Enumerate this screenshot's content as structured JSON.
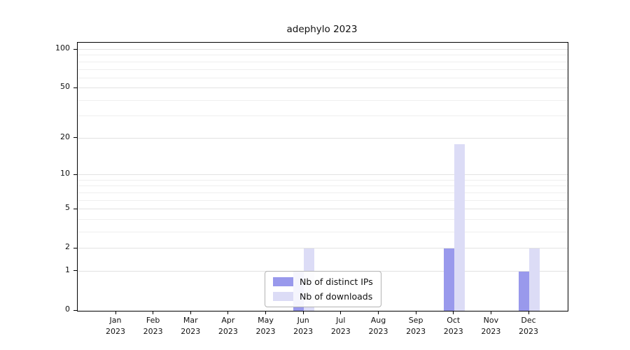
{
  "title": "adephylo 2023",
  "legend": {
    "items": [
      {
        "label": "Nb of distinct IPs",
        "color": "#9999ec"
      },
      {
        "label": "Nb of downloads",
        "color": "#dcdcf6"
      }
    ]
  },
  "chart_data": {
    "type": "bar",
    "title": "adephylo 2023",
    "xlabel": "",
    "ylabel": "",
    "yscale": "log1p",
    "categories": [
      "Jan",
      "Feb",
      "Mar",
      "Apr",
      "May",
      "Jun",
      "Jul",
      "Aug",
      "Sep",
      "Oct",
      "Nov",
      "Dec"
    ],
    "year": "2023",
    "series": [
      {
        "name": "Nb of distinct IPs",
        "color": "#9999ec",
        "values": [
          0,
          0,
          0,
          0,
          0,
          1,
          0,
          0,
          0,
          2,
          0,
          1
        ]
      },
      {
        "name": "Nb of downloads",
        "color": "#dcdcf6",
        "values": [
          0,
          0,
          0,
          0,
          0,
          2,
          0,
          0,
          0,
          18,
          0,
          2
        ]
      }
    ],
    "yticks": [
      0,
      1,
      2,
      5,
      10,
      20,
      50,
      100
    ],
    "grid_values": [
      1,
      2,
      3,
      4,
      5,
      6,
      7,
      8,
      9,
      10,
      20,
      30,
      40,
      50,
      60,
      70,
      80,
      90,
      100
    ],
    "ylim": [
      0,
      110
    ],
    "grid": "horizontal",
    "legend_position": "bottom-center-inside"
  }
}
